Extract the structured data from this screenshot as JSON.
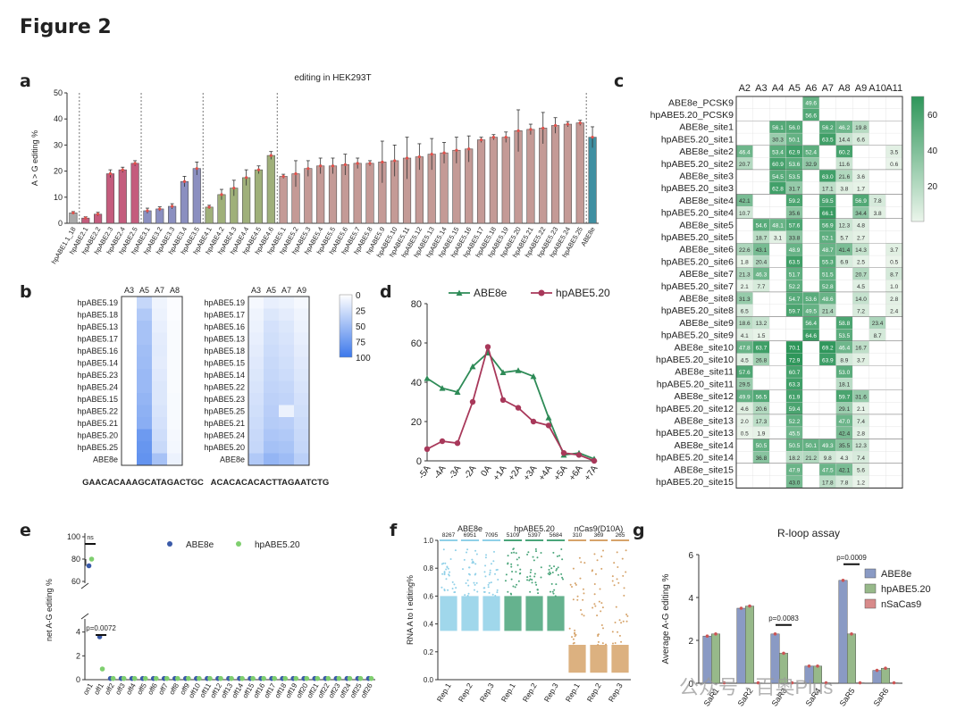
{
  "figure_title": "Figure 2",
  "panel_labels": {
    "a": "a",
    "b": "b",
    "c": "c",
    "d": "d",
    "e": "e",
    "f": "f",
    "g": "g"
  },
  "colors": {
    "gray": "#a9a9a9",
    "pink": "#c45c7d",
    "purple": "#8b8fc0",
    "olive": "#9fb07a",
    "rose": "#c49a96",
    "teal": "#3f8fa1",
    "green": "#2e8b57",
    "maroon": "#a8385a",
    "blue": "#3a5aa8",
    "lightgreen": "#7fcf6f"
  },
  "chart_data": [
    {
      "panel": "a",
      "type": "bar",
      "title": "editing in HEK293T",
      "ylabel": "A > G editing %",
      "ylim": [
        0,
        50
      ],
      "yticks": [
        0,
        10,
        20,
        30,
        40,
        50
      ],
      "categories": [
        "hpABE1.1_18",
        "hpABE2.1",
        "hpABE2.2",
        "hpABE2.3",
        "hpABE2.4",
        "hpABE2.5",
        "hpABE3.1",
        "hpABE3.2",
        "hpABE3.3",
        "hpABE3.4",
        "hpABE3.5",
        "hpABE4.1",
        "hpABE4.2",
        "hpABE4.3",
        "hpABE4.4",
        "hpABE4.5",
        "hpABE4.6",
        "hpABE5.1",
        "hpABE5.2",
        "hpABE5.3",
        "hpABE5.4",
        "hpABE5.5",
        "hpABE5.6",
        "hpABE5.7",
        "hpABE5.8",
        "hpABE5.9",
        "hpABE5.10",
        "hpABE5.11",
        "hpABE5.12",
        "hpABE5.13",
        "hpABE5.14",
        "hpABE5.15",
        "hpABE5.16",
        "hpABE5.17",
        "hpABE5.18",
        "hpABE5.19",
        "hpABE5.20",
        "hpABE5.21",
        "hpABE5.22",
        "hpABE5.23",
        "hpABE5.24",
        "hpABE5.25",
        "ABE8e"
      ],
      "values": [
        4,
        2,
        3.5,
        19,
        20.5,
        23,
        4.8,
        5.5,
        6.5,
        16,
        21,
        6.2,
        11,
        13.5,
        17.5,
        20.5,
        26,
        18,
        19,
        21,
        22,
        22,
        22.5,
        23,
        23,
        23.5,
        24,
        25,
        25.5,
        26.5,
        27,
        28,
        28.5,
        32,
        33,
        33,
        35.5,
        36,
        36.5,
        37.5,
        38,
        38.5,
        33
      ],
      "errors": [
        0.5,
        0.5,
        0.7,
        1.5,
        1,
        1,
        1,
        0.8,
        1,
        2,
        2.5,
        0.7,
        2,
        3,
        3,
        1.5,
        1.5,
        0.8,
        5,
        3,
        3,
        3,
        4,
        2,
        1,
        8,
        6,
        8,
        5,
        6,
        4,
        5,
        5,
        1,
        1,
        2,
        8,
        2,
        6,
        3,
        1,
        1,
        4
      ],
      "groups": [
        1,
        2,
        2,
        2,
        2,
        2,
        3,
        3,
        3,
        3,
        3,
        4,
        4,
        4,
        4,
        4,
        4,
        5,
        5,
        5,
        5,
        5,
        5,
        5,
        5,
        5,
        5,
        5,
        5,
        5,
        5,
        5,
        5,
        5,
        5,
        5,
        5,
        5,
        5,
        5,
        5,
        5,
        6
      ]
    },
    {
      "panel": "b",
      "type": "heatmap",
      "scale": {
        "min": 0,
        "max": 100,
        "ticks": [
          "0",
          "25",
          "50",
          "75",
          "100"
        ]
      },
      "left": {
        "cols": [
          "A3",
          "A5",
          "A7",
          "A8"
        ],
        "sequence": "GAACACAAAGCATAGACTGC",
        "rows": [
          "hpABE5.19",
          "hpABE5.18",
          "hpABE5.13",
          "hpABE5.17",
          "hpABE5.16",
          "hpABE5.14",
          "hpABE5.23",
          "hpABE5.24",
          "hpABE5.15",
          "hpABE5.22",
          "hpABE5.21",
          "hpABE5.20",
          "hpABE5.25",
          "ABE8e"
        ],
        "values": [
          [
            0,
            30,
            8,
            2
          ],
          [
            0,
            40,
            10,
            2
          ],
          [
            0,
            45,
            12,
            3
          ],
          [
            0,
            45,
            14,
            3
          ],
          [
            0,
            48,
            15,
            3
          ],
          [
            0,
            50,
            14,
            3
          ],
          [
            0,
            52,
            16,
            3
          ],
          [
            0,
            52,
            18,
            3
          ],
          [
            0,
            55,
            18,
            4
          ],
          [
            0,
            58,
            20,
            4
          ],
          [
            0,
            60,
            22,
            4
          ],
          [
            0,
            75,
            25,
            5
          ],
          [
            0,
            78,
            28,
            6
          ],
          [
            0,
            80,
            45,
            10
          ]
        ]
      },
      "right": {
        "cols": [
          "A3",
          "A5",
          "A7",
          "A9"
        ],
        "sequence": "ACACACACACTTAGAATCTG",
        "rows": [
          "hpABE5.19",
          "hpABE5.17",
          "hpABE5.16",
          "hpABE5.13",
          "hpABE5.18",
          "hpABE5.15",
          "hpABE5.14",
          "hpABE5.22",
          "hpABE5.23",
          "hpABE5.25",
          "hpABE5.21",
          "hpABE5.24",
          "hpABE5.20",
          "ABE8e"
        ],
        "values": [
          [
            5,
            12,
            10,
            5
          ],
          [
            8,
            18,
            14,
            8
          ],
          [
            10,
            22,
            18,
            10
          ],
          [
            12,
            24,
            20,
            12
          ],
          [
            14,
            26,
            22,
            14
          ],
          [
            16,
            28,
            24,
            16
          ],
          [
            18,
            30,
            26,
            18
          ],
          [
            20,
            32,
            30,
            20
          ],
          [
            22,
            34,
            32,
            22
          ],
          [
            24,
            36,
            10,
            24
          ],
          [
            26,
            38,
            36,
            26
          ],
          [
            28,
            42,
            40,
            28
          ],
          [
            30,
            46,
            44,
            30
          ],
          [
            40,
            55,
            50,
            35
          ]
        ]
      }
    },
    {
      "panel": "d",
      "type": "line",
      "ylim": [
        0,
        80
      ],
      "yticks": [
        0,
        20,
        40,
        60,
        80
      ],
      "x": [
        "-5A",
        "-4A",
        "-3A",
        "-2A",
        "0A",
        "+1A",
        "+2A",
        "+3A",
        "+4A",
        "+5A",
        "+6A",
        "+7A"
      ],
      "series": [
        {
          "name": "ABE8e",
          "values": [
            42,
            37,
            35,
            48,
            55,
            45,
            46,
            43,
            22,
            3,
            4,
            1
          ]
        },
        {
          "name": "hpABE5.20",
          "values": [
            6,
            10,
            9,
            30,
            58,
            31,
            27,
            20,
            18,
            4,
            3,
            0
          ]
        }
      ]
    },
    {
      "panel": "e",
      "type": "scatter",
      "ylabel": "net A-G editing %",
      "yticks": [
        "0",
        "2",
        "4",
        "60",
        "80",
        "100"
      ],
      "categories": [
        "on1",
        "off1",
        "off2",
        "off3",
        "off4",
        "off5",
        "off6",
        "off7",
        "off8",
        "off9",
        "off10",
        "off11",
        "off12",
        "off13",
        "off14",
        "off15",
        "off16",
        "off17",
        "off18",
        "off19",
        "off20",
        "off21",
        "off22",
        "off23",
        "off24",
        "off25",
        "off26"
      ],
      "series": [
        {
          "name": "ABE8e",
          "values": [
            74,
            3.6,
            0.1,
            0.1,
            0.1,
            0.1,
            0.1,
            0.1,
            0.1,
            0.1,
            0.1,
            0.1,
            0.1,
            0.1,
            0.1,
            0.1,
            0.1,
            0.1,
            0.1,
            0.1,
            0.1,
            0.1,
            0.1,
            0.1,
            0.1,
            0.1,
            0.1
          ]
        },
        {
          "name": "hpABE5.20",
          "values": [
            80,
            0.9,
            0.1,
            0.1,
            0.1,
            0.1,
            0.1,
            0.1,
            0.1,
            0.1,
            0.1,
            0.1,
            0.1,
            0.1,
            0.1,
            0.1,
            0.1,
            0.1,
            0.1,
            0.1,
            0.1,
            0.1,
            0.1,
            0.1,
            0.1,
            0.1,
            0.1
          ]
        }
      ],
      "annotations": [
        "ns",
        "p=0.0072"
      ]
    },
    {
      "panel": "f",
      "type": "scatter",
      "ylabel": "RNA A to I editing%",
      "yticks": [
        "0.0",
        "0.2",
        "0.4",
        "0.6",
        "0.8",
        "1.0"
      ],
      "groups": [
        {
          "name": "ABE8e",
          "reps": [
            "Rep.1",
            "Rep.2",
            "Rep.3"
          ],
          "counts": [
            "8267",
            "6951",
            "7095"
          ]
        },
        {
          "name": "hpABE5.20",
          "reps": [
            "Rep.1",
            "Rep.2",
            "Rep.3"
          ],
          "counts": [
            "5109",
            "5397",
            "5684"
          ]
        },
        {
          "name": "nCas9(D10A)",
          "reps": [
            "Rep.1",
            "Rep.2",
            "Rep.3"
          ],
          "counts": [
            "310",
            "369",
            "265"
          ]
        }
      ]
    },
    {
      "panel": "g",
      "type": "bar",
      "title": "R-loop assay",
      "ylabel": "Average A-G editing %",
      "ylim": [
        0,
        6
      ],
      "yticks": [
        0,
        2,
        4,
        6
      ],
      "categories": [
        "SaR1",
        "SaR2",
        "SaR3",
        "SaR4",
        "SaR5",
        "SaR6"
      ],
      "series": [
        {
          "name": "ABE8e",
          "values": [
            2.2,
            3.5,
            2.3,
            0.8,
            4.8,
            0.6
          ]
        },
        {
          "name": "hpABE5.20",
          "values": [
            2.3,
            3.6,
            1.4,
            0.8,
            2.3,
            0.7
          ]
        },
        {
          "name": "nSaCas9",
          "values": [
            0.02,
            0.02,
            0.02,
            0.02,
            0.02,
            0.02
          ]
        }
      ],
      "annotations": [
        "p=0.0083",
        "p=0.0009"
      ]
    },
    {
      "panel": "c",
      "type": "heatmap",
      "scale": {
        "ticks": [
          "20",
          "40",
          "60"
        ]
      },
      "cols": [
        "A2",
        "A3",
        "A4",
        "A5",
        "A6",
        "A7",
        "A8",
        "A9",
        "A10",
        "A11"
      ],
      "rows": [
        "ABE8e_PCSK9",
        "hpABE5.20_PCSK9",
        "ABE8e_site1",
        "hpABE5.20_site1",
        "ABE8e_site2",
        "hpABE5.20_site2",
        "ABE8e_site3",
        "hpABE5.20_site3",
        "ABE8e_site4",
        "hpABE5.20_site4",
        "ABE8e_site5",
        "hpABE5.20_site5",
        "ABE8e_site6",
        "hpABE5.20_site6",
        "ABE8e_site7",
        "hpABE5.20_site7",
        "ABE8e_site8",
        "hpABE5.20_site8",
        "ABE8e_site9",
        "hpABE5.20_site9",
        "ABE8e_site10",
        "hpABE5.20_site10",
        "ABE8e_site11",
        "hpABE5.20_site11",
        "ABE8e_site12",
        "hpABE5.20_site12",
        "ABE8e_site13",
        "hpABE5.20_site13",
        "ABE8e_site14",
        "hpABE5.20_site14",
        "ABE8e_site15",
        "hpABE5.20_site15"
      ],
      "cells": [
        [
          null,
          null,
          null,
          null,
          "49.6",
          null,
          null,
          null,
          null,
          null
        ],
        [
          null,
          null,
          null,
          null,
          "56.6",
          null,
          null,
          null,
          null,
          null
        ],
        [
          null,
          null,
          "56.1",
          "56.0",
          null,
          "56.2",
          "46.2",
          "19.8",
          null,
          null
        ],
        [
          null,
          null,
          "30.3",
          "50.1",
          null,
          "63.5",
          "14.4",
          "6.6",
          null,
          null
        ],
        [
          "46.4",
          null,
          "53.4",
          "62.9",
          "52.4",
          null,
          "60.2",
          null,
          null,
          "3.5"
        ],
        [
          "20.7",
          null,
          "60.9",
          "53.6",
          "32.9",
          null,
          "11.6",
          null,
          null,
          "0.6"
        ],
        [
          null,
          null,
          "54.5",
          "53.5",
          null,
          "63.0",
          "21.6",
          "3.6",
          null,
          null
        ],
        [
          null,
          null,
          "62.8",
          "31.7",
          null,
          "17.1",
          "3.8",
          "1.7",
          null,
          null
        ],
        [
          "42.1",
          null,
          null,
          "59.2",
          null,
          "59.5",
          null,
          "56.9",
          "7.8",
          null
        ],
        [
          "10.7",
          null,
          null,
          "35.6",
          null,
          "66.1",
          null,
          "34.4",
          "3.8",
          null
        ],
        [
          null,
          "54.6",
          "48.1",
          "57.6",
          null,
          "56.9",
          "12.3",
          "4.8",
          null,
          null
        ],
        [
          null,
          "18.7",
          "3.1",
          "33.8",
          null,
          "52.1",
          "5.7",
          "2.7",
          null,
          null
        ],
        [
          "22.6",
          "43.1",
          null,
          "48.9",
          null,
          "48.7",
          "41.4",
          "14.3",
          null,
          "3.7"
        ],
        [
          "1.8",
          "20.4",
          null,
          "63.5",
          null,
          "55.3",
          "6.9",
          "2.5",
          null,
          "0.5"
        ],
        [
          "21.3",
          "46.3",
          null,
          "51.7",
          null,
          "51.5",
          null,
          "20.7",
          null,
          "8.7"
        ],
        [
          "2.1",
          "7.7",
          null,
          "52.2",
          null,
          "52.8",
          null,
          "4.5",
          null,
          "1.0"
        ],
        [
          "31.3",
          null,
          null,
          "54.7",
          "53.6",
          "48.6",
          null,
          "14.0",
          null,
          "2.8"
        ],
        [
          "6.5",
          null,
          null,
          "59.7",
          "49.5",
          "21.4",
          null,
          "7.2",
          null,
          "2.4"
        ],
        [
          "18.6",
          "13.2",
          null,
          null,
          "56.4",
          null,
          "58.8",
          null,
          "23.4",
          null
        ],
        [
          "4.1",
          "1.5",
          null,
          null,
          "64.6",
          null,
          "53.5",
          null,
          "8.7",
          null
        ],
        [
          "47.8",
          "63.7",
          null,
          "70.1",
          null,
          "69.2",
          "46.4",
          "16.7",
          null,
          null
        ],
        [
          "4.5",
          "26.8",
          null,
          "72.9",
          null,
          "63.9",
          "8.9",
          "3.7",
          null,
          null
        ],
        [
          "57.6",
          null,
          null,
          "60.7",
          null,
          null,
          "53.0",
          null,
          null,
          null
        ],
        [
          "29.5",
          null,
          null,
          "63.3",
          null,
          null,
          "18.1",
          null,
          null,
          null
        ],
        [
          "49.9",
          "56.5",
          null,
          "61.9",
          null,
          null,
          "59.7",
          "31.6",
          null,
          null
        ],
        [
          "4.6",
          "20.6",
          null,
          "59.4",
          null,
          null,
          "29.1",
          "2.1",
          null,
          null
        ],
        [
          "2.0",
          "17.3",
          null,
          "52.2",
          null,
          null,
          "47.0",
          "7.4",
          null,
          null
        ],
        [
          "0.5",
          "1.9",
          null,
          "45.5",
          null,
          null,
          "42.4",
          "2.8",
          null,
          null
        ],
        [
          null,
          "50.5",
          null,
          "50.5",
          "50.1",
          "49.3",
          "35.5",
          "12.3",
          null,
          null
        ],
        [
          null,
          "36.8",
          null,
          "18.2",
          "21.2",
          "9.8",
          "4.3",
          "7.4",
          null,
          null
        ],
        [
          null,
          null,
          null,
          "47.9",
          null,
          "47.5",
          "42.1",
          "5.6",
          null,
          null
        ],
        [
          null,
          null,
          null,
          "43.0",
          null,
          "17.8",
          "7.8",
          "1.2",
          null,
          null
        ]
      ]
    }
  ],
  "watermark": "公众号 · 百奥Plus"
}
